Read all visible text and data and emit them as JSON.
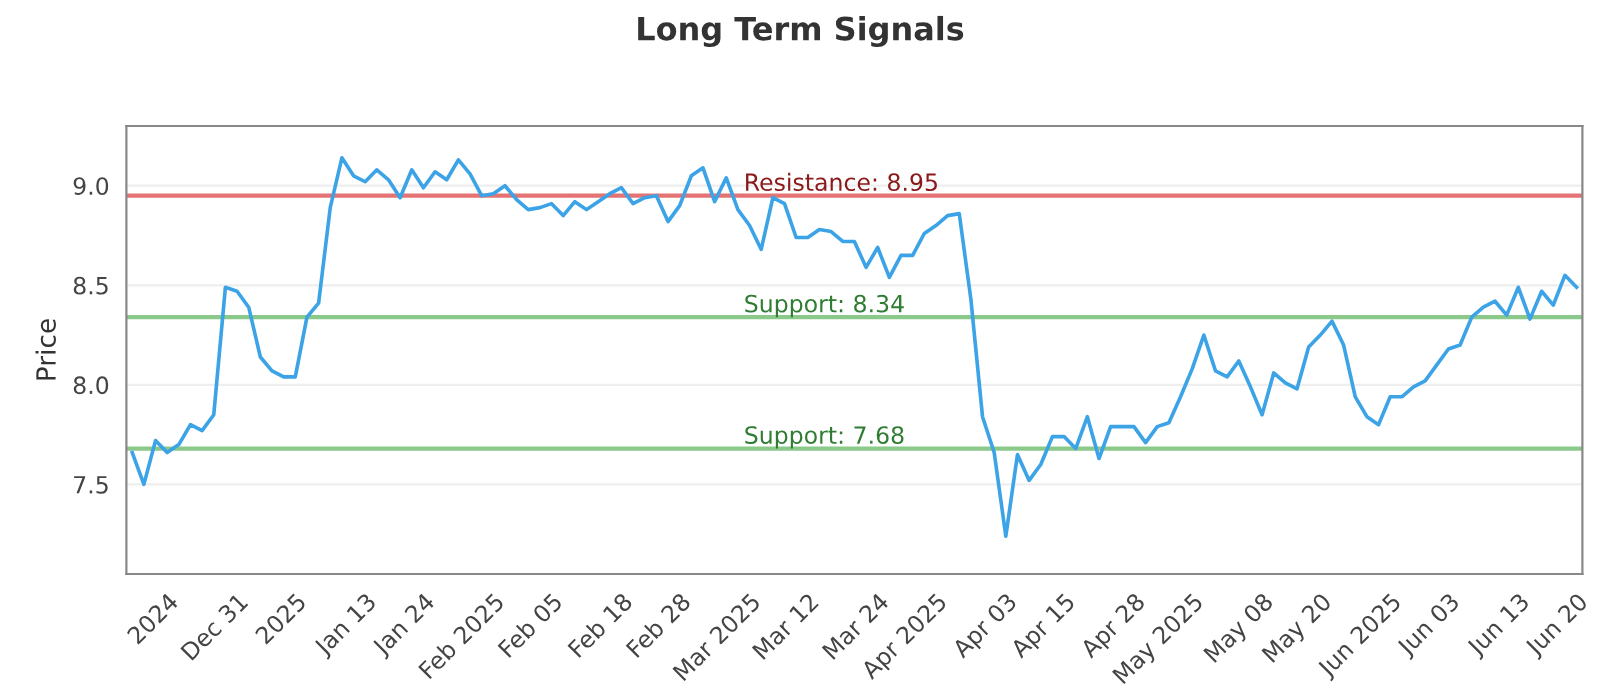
{
  "chart_data": {
    "type": "line",
    "title": "Long Term Signals",
    "ylabel": "Price",
    "categories": [
      null,
      null,
      null,
      "2024",
      null,
      null,
      null,
      null,
      null,
      "Dec 31",
      null,
      null,
      null,
      null,
      "2025",
      null,
      null,
      null,
      null,
      null,
      "Jan 13",
      null,
      null,
      null,
      null,
      "Jan 24",
      null,
      null,
      null,
      null,
      null,
      "Feb 2025",
      null,
      null,
      null,
      null,
      "Feb 05",
      null,
      null,
      null,
      null,
      null,
      "Feb 18",
      null,
      null,
      null,
      null,
      "Feb 28",
      null,
      null,
      null,
      null,
      null,
      "Mar 2025",
      null,
      null,
      null,
      null,
      "Mar 12",
      null,
      null,
      null,
      null,
      null,
      "Mar 24",
      null,
      null,
      null,
      null,
      "Apr 2025",
      null,
      null,
      null,
      null,
      null,
      "Apr 03",
      null,
      null,
      null,
      null,
      "Apr 15",
      null,
      null,
      null,
      null,
      null,
      "Apr 28",
      null,
      null,
      null,
      null,
      "May 2025",
      null,
      null,
      null,
      null,
      null,
      "May 08",
      null,
      null,
      null,
      null,
      "May 20",
      null,
      null,
      null,
      null,
      null,
      "Jun 2025",
      null,
      null,
      null,
      null,
      "Jun 03",
      null,
      null,
      null,
      null,
      null,
      "Jun 13",
      null,
      null,
      null,
      null,
      "Jun 20"
    ],
    "series": [
      {
        "color": "#3ba3e6",
        "values": [
          7.66,
          7.5,
          7.72,
          7.66,
          7.7,
          7.8,
          7.77,
          7.85,
          8.49,
          8.47,
          8.39,
          8.14,
          8.07,
          8.04,
          8.04,
          8.34,
          8.41,
          8.89,
          9.14,
          9.05,
          9.02,
          9.08,
          9.03,
          8.94,
          9.08,
          8.99,
          9.07,
          9.03,
          9.13,
          9.06,
          8.95,
          8.96,
          9.0,
          8.93,
          8.88,
          8.89,
          8.91,
          8.85,
          8.92,
          8.88,
          8.92,
          8.96,
          8.99,
          8.91,
          8.94,
          8.95,
          8.82,
          8.9,
          9.05,
          9.09,
          8.92,
          9.04,
          8.88,
          8.8,
          8.68,
          8.94,
          8.91,
          8.74,
          8.74,
          8.78,
          8.77,
          8.72,
          8.72,
          8.59,
          8.69,
          8.54,
          8.65,
          8.65,
          8.76,
          8.8,
          8.85,
          8.86,
          8.43,
          7.84,
          7.66,
          7.24,
          7.65,
          7.52,
          7.6,
          7.74,
          7.74,
          7.68,
          7.84,
          7.63,
          7.79,
          7.79,
          7.79,
          7.71,
          7.79,
          7.81,
          7.94,
          8.08,
          8.25,
          8.07,
          8.04,
          8.12,
          7.99,
          7.85,
          8.06,
          8.01,
          7.98,
          8.19,
          8.25,
          8.32,
          8.2,
          7.94,
          7.84,
          7.8,
          7.94,
          7.94,
          7.99,
          8.02,
          8.1,
          8.18,
          8.2,
          8.34,
          8.39,
          8.42,
          8.35,
          8.49,
          8.33,
          8.47,
          8.4,
          8.55,
          8.49
        ]
      }
    ],
    "ylim": [
      7.05,
      9.3
    ],
    "yticks": [
      {
        "value": 7.5,
        "label": "7.5"
      },
      {
        "value": 8.0,
        "label": "8.0"
      },
      {
        "value": 8.5,
        "label": "8.5"
      },
      {
        "value": 9.0,
        "label": "9.0"
      }
    ],
    "grid": "y",
    "marker": "none",
    "line_style": "solid",
    "ref_lines": [
      {
        "axis": "y",
        "value": 8.95,
        "label": "Resistance: 8.95",
        "color": "#e57373"
      },
      {
        "axis": "y",
        "value": 8.34,
        "label": "Support: 8.34",
        "color": "#8bc98b"
      },
      {
        "axis": "y",
        "value": 7.68,
        "label": "Support: 7.68",
        "color": "#8bc98b"
      }
    ]
  }
}
